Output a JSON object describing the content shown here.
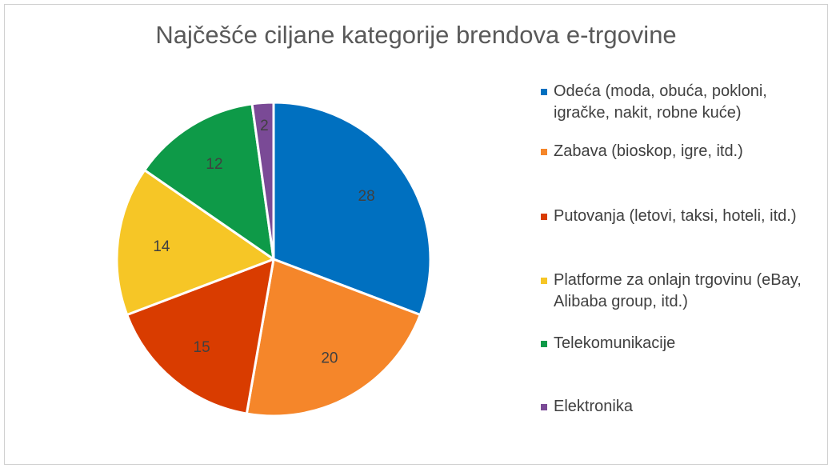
{
  "chart": {
    "title": "Najčešće ciljane kategorije brendova e-trgovine"
  },
  "legend": {
    "items": [
      {
        "label": "Odeća (moda, obuća, pokloni, igračke, nakit, robne kuće)",
        "color": "#0070C0"
      },
      {
        "label": "Zabava (bioskop, igre, itd.)",
        "color": "#F5862A"
      },
      {
        "label": "Putovanja (letovi, taksi, hoteli, itd.)",
        "color": "#D93C00"
      },
      {
        "label": "Platforme za onlajn trgovinu (eBay, Alibaba group, itd.)",
        "color": "#F6C626"
      },
      {
        "label": "Telekomunikacije",
        "color": "#0E9A48"
      },
      {
        "label": "Elektronika",
        "color": "#7A4A96"
      }
    ]
  },
  "chart_data": {
    "type": "pie",
    "title": "Najčešće ciljane kategorije brendova e-trgovine",
    "categories": [
      "Odeća (moda, obuća, pokloni, igračke, nakit, robne kuće)",
      "Zabava (bioskop, igre, itd.)",
      "Putovanja (letovi, taksi, hoteli, itd.)",
      "Platforme za onlajn trgovinu (eBay, Alibaba group, itd.)",
      "Telekomunikacije",
      "Elektronika"
    ],
    "values": [
      28,
      20,
      15,
      14,
      12,
      2
    ],
    "colors": [
      "#0070C0",
      "#F5862A",
      "#D93C00",
      "#F6C626",
      "#0E9A48",
      "#7A4A96"
    ],
    "data_labels": true,
    "start_angle": "12 o'clock",
    "direction": "clockwise",
    "legend_position": "right"
  }
}
